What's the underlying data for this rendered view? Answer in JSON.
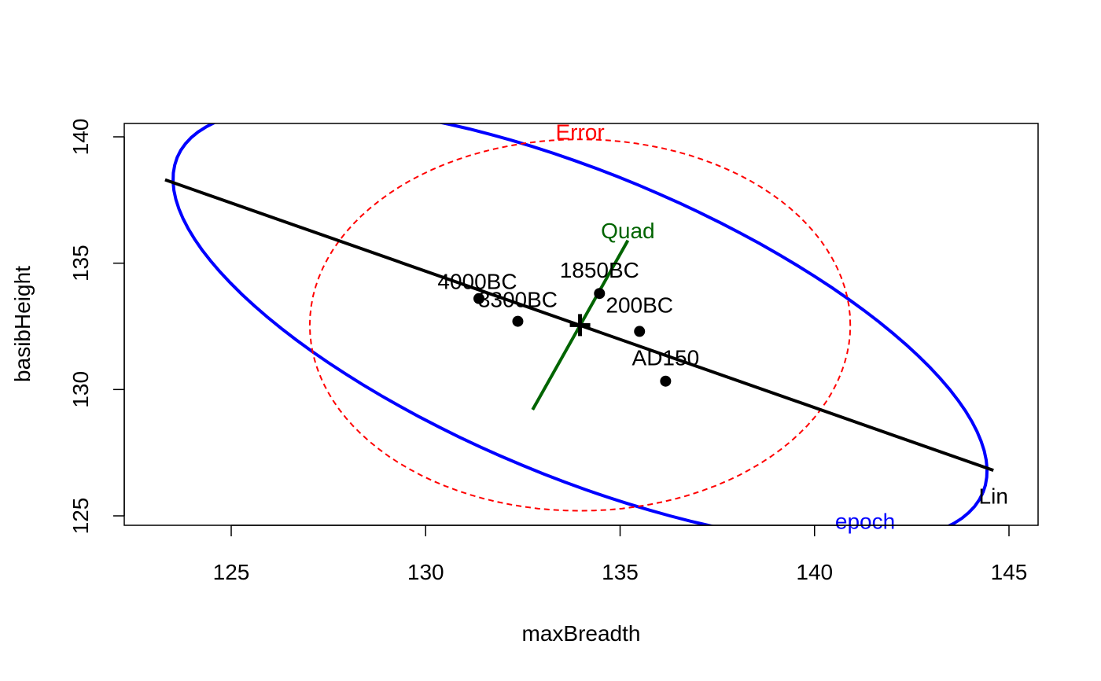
{
  "chart_data": {
    "type": "scatter",
    "title": "",
    "xlabel": "maxBreadth",
    "ylabel": "basibHeight",
    "xlim": [
      122.2,
      145.8
    ],
    "ylim": [
      124.6,
      140.5
    ],
    "xticks": [
      125,
      130,
      135,
      140,
      145
    ],
    "yticks": [
      125,
      130,
      135,
      140
    ],
    "grid": false,
    "points": [
      {
        "label": "4000BC",
        "x": 131.37,
        "y": 133.6
      },
      {
        "label": "3300BC",
        "x": 132.37,
        "y": 132.7
      },
      {
        "label": "1850BC",
        "x": 134.47,
        "y": 133.8
      },
      {
        "label": "200BC",
        "x": 135.5,
        "y": 132.3
      },
      {
        "label": "AD150",
        "x": 136.17,
        "y": 130.33
      }
    ],
    "grand_mean": {
      "x": 133.97,
      "y": 132.55
    },
    "ellipses": [
      {
        "name": "epoch",
        "color": "#0000ff",
        "style": "solid",
        "center": [
          133.97,
          132.55
        ],
        "a": 11.22,
        "b": 3.9,
        "angle_deg": -27.5
      },
      {
        "name": "Error",
        "color": "#ff0000",
        "style": "dashed",
        "center": [
          133.97,
          132.55
        ],
        "rx": 6.95,
        "ry": 7.35,
        "angle_deg": 0
      }
    ],
    "lines": [
      {
        "name": "Lin",
        "color": "#000000",
        "from": [
          123.3,
          138.3
        ],
        "to": [
          144.6,
          126.8
        ]
      },
      {
        "name": "Quad",
        "color": "#006400",
        "from": [
          132.75,
          129.2
        ],
        "to": [
          135.2,
          135.9
        ]
      }
    ],
    "annotations": [
      {
        "text": "Error",
        "color": "#ff0000",
        "x": 133.97,
        "y": 140.2
      },
      {
        "text": "epoch",
        "color": "#0000ff",
        "x": 141.3,
        "y": 124.8
      },
      {
        "text": "Lin",
        "color": "#000000",
        "x": 144.6,
        "y": 125.8
      },
      {
        "text": "Quad",
        "color": "#006400",
        "x": 135.2,
        "y": 136.3
      }
    ]
  }
}
